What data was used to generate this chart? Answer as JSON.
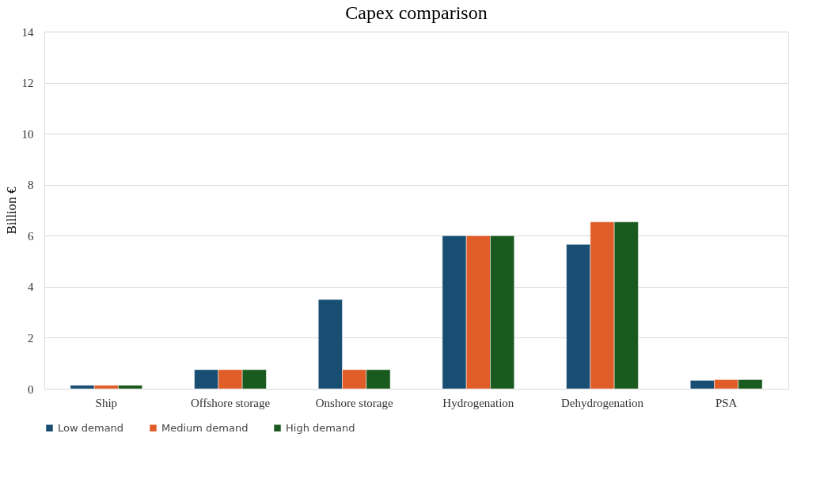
{
  "chart_data": {
    "type": "bar",
    "title": "Capex comparison",
    "ylabel": "Billion €",
    "categories": [
      "Ship",
      "Offshore storage",
      "Onshore storage",
      "Hydrogenation",
      "Dehydrogenation",
      "PSA"
    ],
    "series": [
      {
        "name": "Low demand",
        "color": "#174e72",
        "values": [
          0.14,
          0.75,
          3.5,
          6.0,
          5.66,
          0.33
        ]
      },
      {
        "name": "Medium demand",
        "color": "#e05c28",
        "values": [
          0.14,
          0.75,
          0.75,
          6.0,
          6.54,
          0.36
        ]
      },
      {
        "name": "High demand",
        "color": "#1b5a1e",
        "values": [
          0.14,
          0.75,
          0.75,
          6.0,
          6.54,
          0.36
        ]
      }
    ],
    "ylim": [
      0,
      14
    ],
    "yticks": [
      0,
      2,
      4,
      6,
      8,
      10,
      12,
      14
    ],
    "grid": "y",
    "legend": "bottom"
  }
}
